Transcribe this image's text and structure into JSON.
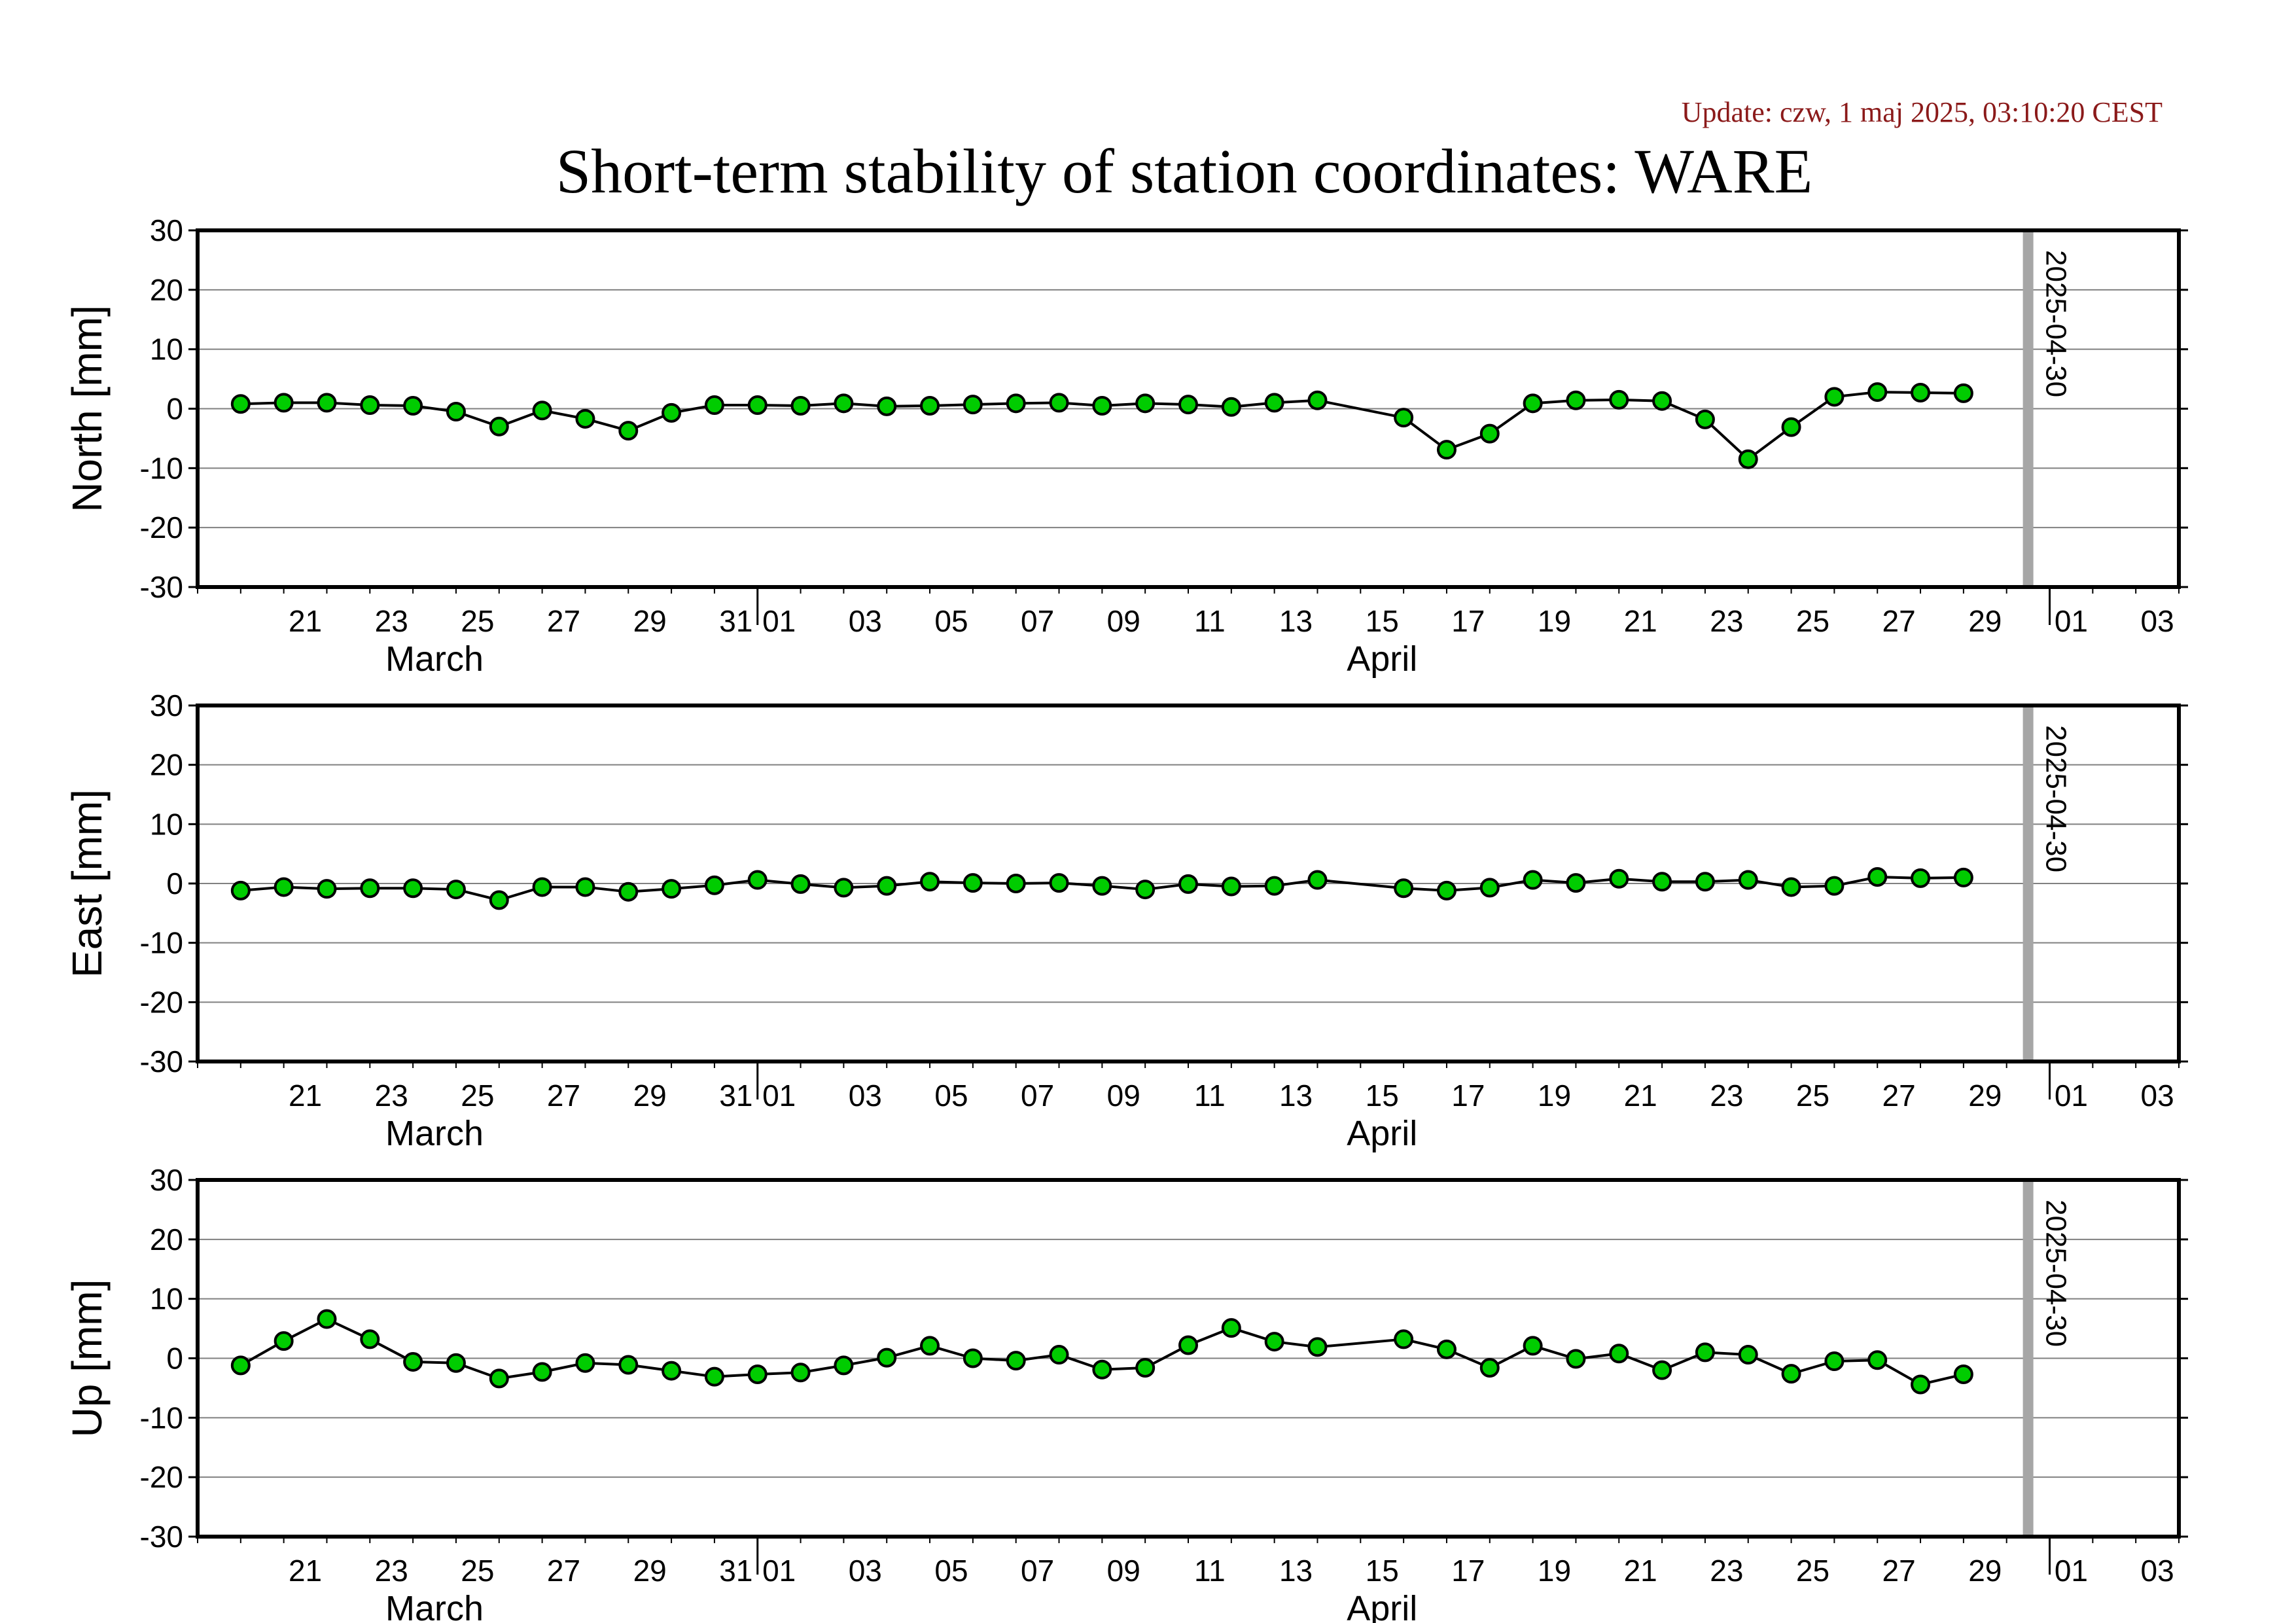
{
  "update_text": "Update: czw, 1 maj 2025, 03:10:20 CEST",
  "colors": {
    "point_fill": "#00cc00",
    "point_stroke": "#000000",
    "line": "#000000",
    "grid": "#808080",
    "marker_line": "#a6a6a6",
    "update_text": "#8b1a1a"
  },
  "chart_data": {
    "type": "line",
    "title": "Short-term stability of station coordinates: WARE",
    "x_range": [
      "2025-03-19",
      "2025-05-04"
    ],
    "x_tick_labels": [
      "21",
      "23",
      "25",
      "27",
      "29",
      "31",
      "01",
      "03",
      "05",
      "07",
      "09",
      "11",
      "13",
      "15",
      "17",
      "19",
      "21",
      "23",
      "25",
      "27",
      "29",
      "01",
      "03"
    ],
    "x_tick_dates": [
      "2025-03-21",
      "2025-03-23",
      "2025-03-25",
      "2025-03-27",
      "2025-03-29",
      "2025-03-31",
      "2025-04-01",
      "2025-04-03",
      "2025-04-05",
      "2025-04-07",
      "2025-04-09",
      "2025-04-11",
      "2025-04-13",
      "2025-04-15",
      "2025-04-17",
      "2025-04-19",
      "2025-04-21",
      "2025-04-23",
      "2025-04-25",
      "2025-04-27",
      "2025-04-29",
      "2025-05-01",
      "2025-05-03"
    ],
    "month_boundaries": [
      "2025-04-01",
      "2025-05-01"
    ],
    "month_labels": [
      {
        "label": "March",
        "date": "2025-03-24"
      },
      {
        "label": "April",
        "date": "2025-04-15"
      }
    ],
    "marker_line": {
      "date": "2025-04-30",
      "label": "2025-04-30"
    },
    "ylim": [
      -30,
      30
    ],
    "y_ticks": [
      -30,
      -20,
      -10,
      0,
      10,
      20,
      30
    ],
    "grid": true,
    "x": [
      "2025-03-20",
      "2025-03-21",
      "2025-03-22",
      "2025-03-23",
      "2025-03-24",
      "2025-03-25",
      "2025-03-26",
      "2025-03-27",
      "2025-03-28",
      "2025-03-29",
      "2025-03-30",
      "2025-03-31",
      "2025-04-01",
      "2025-04-02",
      "2025-04-03",
      "2025-04-04",
      "2025-04-05",
      "2025-04-06",
      "2025-04-07",
      "2025-04-08",
      "2025-04-09",
      "2025-04-10",
      "2025-04-11",
      "2025-04-12",
      "2025-04-13",
      "2025-04-14",
      "2025-04-16",
      "2025-04-17",
      "2025-04-18",
      "2025-04-19",
      "2025-04-20",
      "2025-04-21",
      "2025-04-22",
      "2025-04-23",
      "2025-04-24",
      "2025-04-25",
      "2025-04-26",
      "2025-04-27",
      "2025-04-28",
      "2025-04-29"
    ],
    "series": [
      {
        "ylabel": "North [mm]",
        "values": [
          0.8,
          1.0,
          1.0,
          0.6,
          0.5,
          -0.5,
          -3.0,
          -0.3,
          -1.7,
          -3.7,
          -0.7,
          0.6,
          0.6,
          0.5,
          0.9,
          0.4,
          0.5,
          0.7,
          0.9,
          1.0,
          0.5,
          0.9,
          0.7,
          0.3,
          1.0,
          1.4,
          -1.5,
          -6.9,
          -4.2,
          0.9,
          1.4,
          1.5,
          1.3,
          -1.8,
          -8.5,
          -3.1,
          2.0,
          2.8,
          2.7,
          2.6
        ]
      },
      {
        "ylabel": "East [mm]",
        "values": [
          -1.2,
          -0.6,
          -0.9,
          -0.8,
          -0.8,
          -1.0,
          -2.8,
          -0.6,
          -0.6,
          -1.4,
          -0.9,
          -0.3,
          0.6,
          -0.1,
          -0.7,
          -0.4,
          0.3,
          0.1,
          0.0,
          0.1,
          -0.4,
          -1.0,
          -0.1,
          -0.5,
          -0.4,
          0.6,
          -0.8,
          -1.2,
          -0.7,
          0.6,
          0.1,
          0.8,
          0.3,
          0.3,
          0.6,
          -0.6,
          -0.4,
          1.1,
          0.9,
          1.0
        ]
      },
      {
        "ylabel": "Up [mm]",
        "values": [
          -1.2,
          2.9,
          6.6,
          3.2,
          -0.6,
          -0.8,
          -3.4,
          -2.3,
          -0.8,
          -1.1,
          -2.1,
          -3.1,
          -2.7,
          -2.4,
          -1.2,
          0.1,
          2.1,
          0.0,
          -0.4,
          0.6,
          -1.9,
          -1.6,
          2.2,
          5.1,
          2.8,
          1.9,
          3.2,
          1.5,
          -1.6,
          2.1,
          -0.1,
          0.8,
          -2.0,
          1.0,
          0.6,
          -2.6,
          -0.5,
          -0.3,
          -4.4,
          -2.7
        ]
      }
    ]
  }
}
